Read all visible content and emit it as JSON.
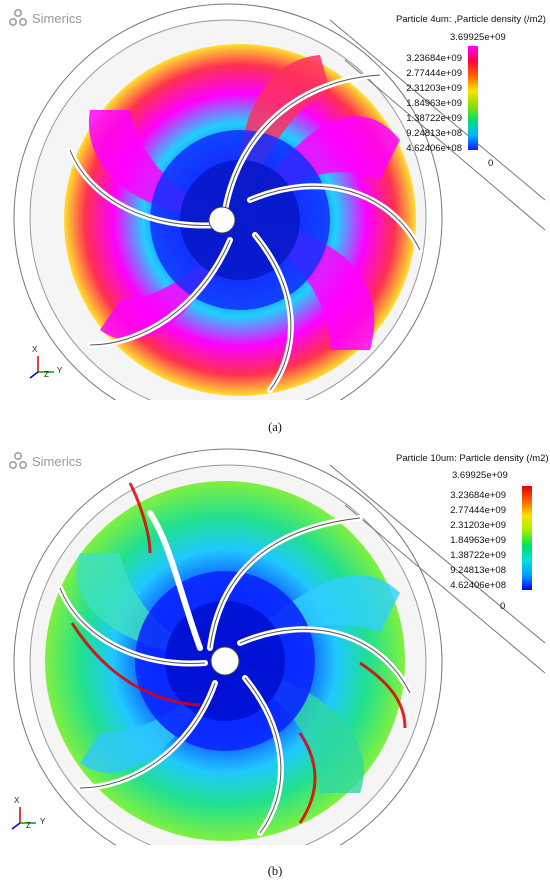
{
  "panels": [
    {
      "id": "a",
      "logo_text": "Simerics",
      "legend": {
        "title": "Particle 4um: ,Particle density (/m2)",
        "max_label": "3.69925e+09",
        "ticks": [
          "3.23684e+09",
          "2.77444e+09",
          "2.31203e+09",
          "1.84963e+09",
          "1.38722e+09",
          "9.24813e+08",
          "4.62406e+08"
        ],
        "zero_label": "0",
        "colormap": [
          "#1a1aff",
          "#00b4ff",
          "#00e070",
          "#90e000",
          "#ffe000",
          "#ff6000",
          "#ff0040",
          "#ff00ff"
        ]
      },
      "axes": {
        "x": "X",
        "y": "Y",
        "z": "Z"
      },
      "caption": "(a)"
    },
    {
      "id": "b",
      "logo_text": "Simerics",
      "legend": {
        "title": "Particle 10um: Particle density (/m2)",
        "max_label": "3.69925e+09",
        "ticks": [
          "3.23684e+09",
          "2.77444e+09",
          "2.31203e+09",
          "1.84963e+09",
          "1.38722e+09",
          "9.24813e+08",
          "4.62406e+08"
        ],
        "zero_label": "0",
        "colormap": [
          "#0000ff",
          "#00a0ff",
          "#00e0e0",
          "#00e060",
          "#a0f000",
          "#ffe000",
          "#ff6000",
          "#e00000"
        ]
      },
      "axes": {
        "x": "X",
        "y": "Y",
        "z": "Z"
      },
      "caption": "(b)"
    }
  ]
}
